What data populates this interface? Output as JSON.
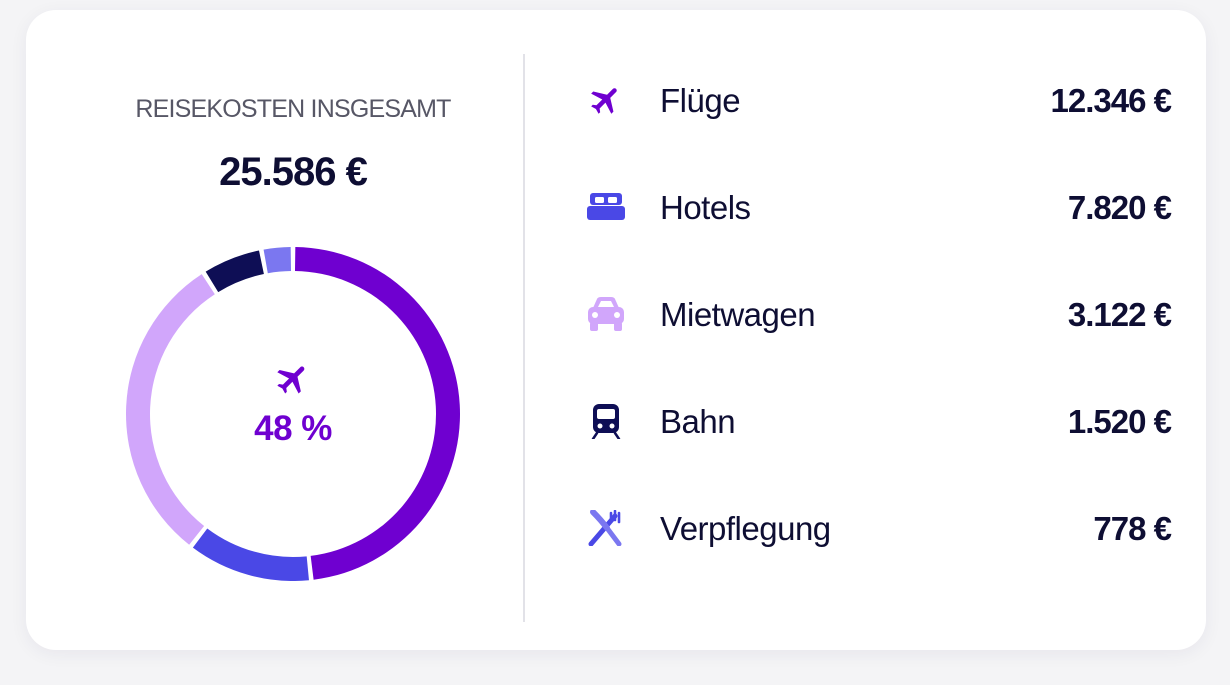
{
  "summary": {
    "title": "REISEKOSTEN INSGESAMT",
    "total": "25.586 €",
    "highlight_percent": "48 %",
    "highlight_icon": "plane-icon"
  },
  "colors": {
    "flights": "#6f00d0",
    "hotels": "#4a48e6",
    "rental_car": "#d1a6fb",
    "rail": "#0e0e55",
    "meals": "#7b77f0",
    "text": "#0e0e33"
  },
  "chart_data": {
    "type": "pie",
    "title": "REISEKOSTEN INSGESAMT",
    "total": 25586,
    "unit": "€",
    "categories": [
      "Flüge",
      "Hotels",
      "Mietwagen",
      "Bahn",
      "Verpflegung"
    ],
    "values": [
      12346,
      7820,
      3122,
      1520,
      778
    ],
    "display_values": [
      "12.346 €",
      "7.820 €",
      "3.122 €",
      "1.520 €",
      "778 €"
    ],
    "colors": [
      "#6f00d0",
      "#d1a6fb",
      "#4a48e6",
      "#0e0e55",
      "#7b77f0"
    ],
    "arc_order": [
      "Flüge",
      "Mietwagen",
      "Hotels",
      "Bahn",
      "Verpflegung"
    ],
    "highlighted": "Flüge",
    "highlighted_percent": 48,
    "donut": true
  },
  "items": [
    {
      "icon": "plane-icon",
      "label": "Flüge",
      "value": "12.346 €",
      "color": "#6f00d0"
    },
    {
      "icon": "bed-icon",
      "label": "Hotels",
      "value": "7.820 €",
      "color": "#4a48e6"
    },
    {
      "icon": "car-icon",
      "label": "Mietwagen",
      "value": "3.122 €",
      "color": "#d1a6fb"
    },
    {
      "icon": "train-icon",
      "label": "Bahn",
      "value": "1.520 €",
      "color": "#0e0e55"
    },
    {
      "icon": "cutlery-icon",
      "label": "Verpflegung",
      "value": "778 €",
      "color": "#7b77f0"
    }
  ]
}
